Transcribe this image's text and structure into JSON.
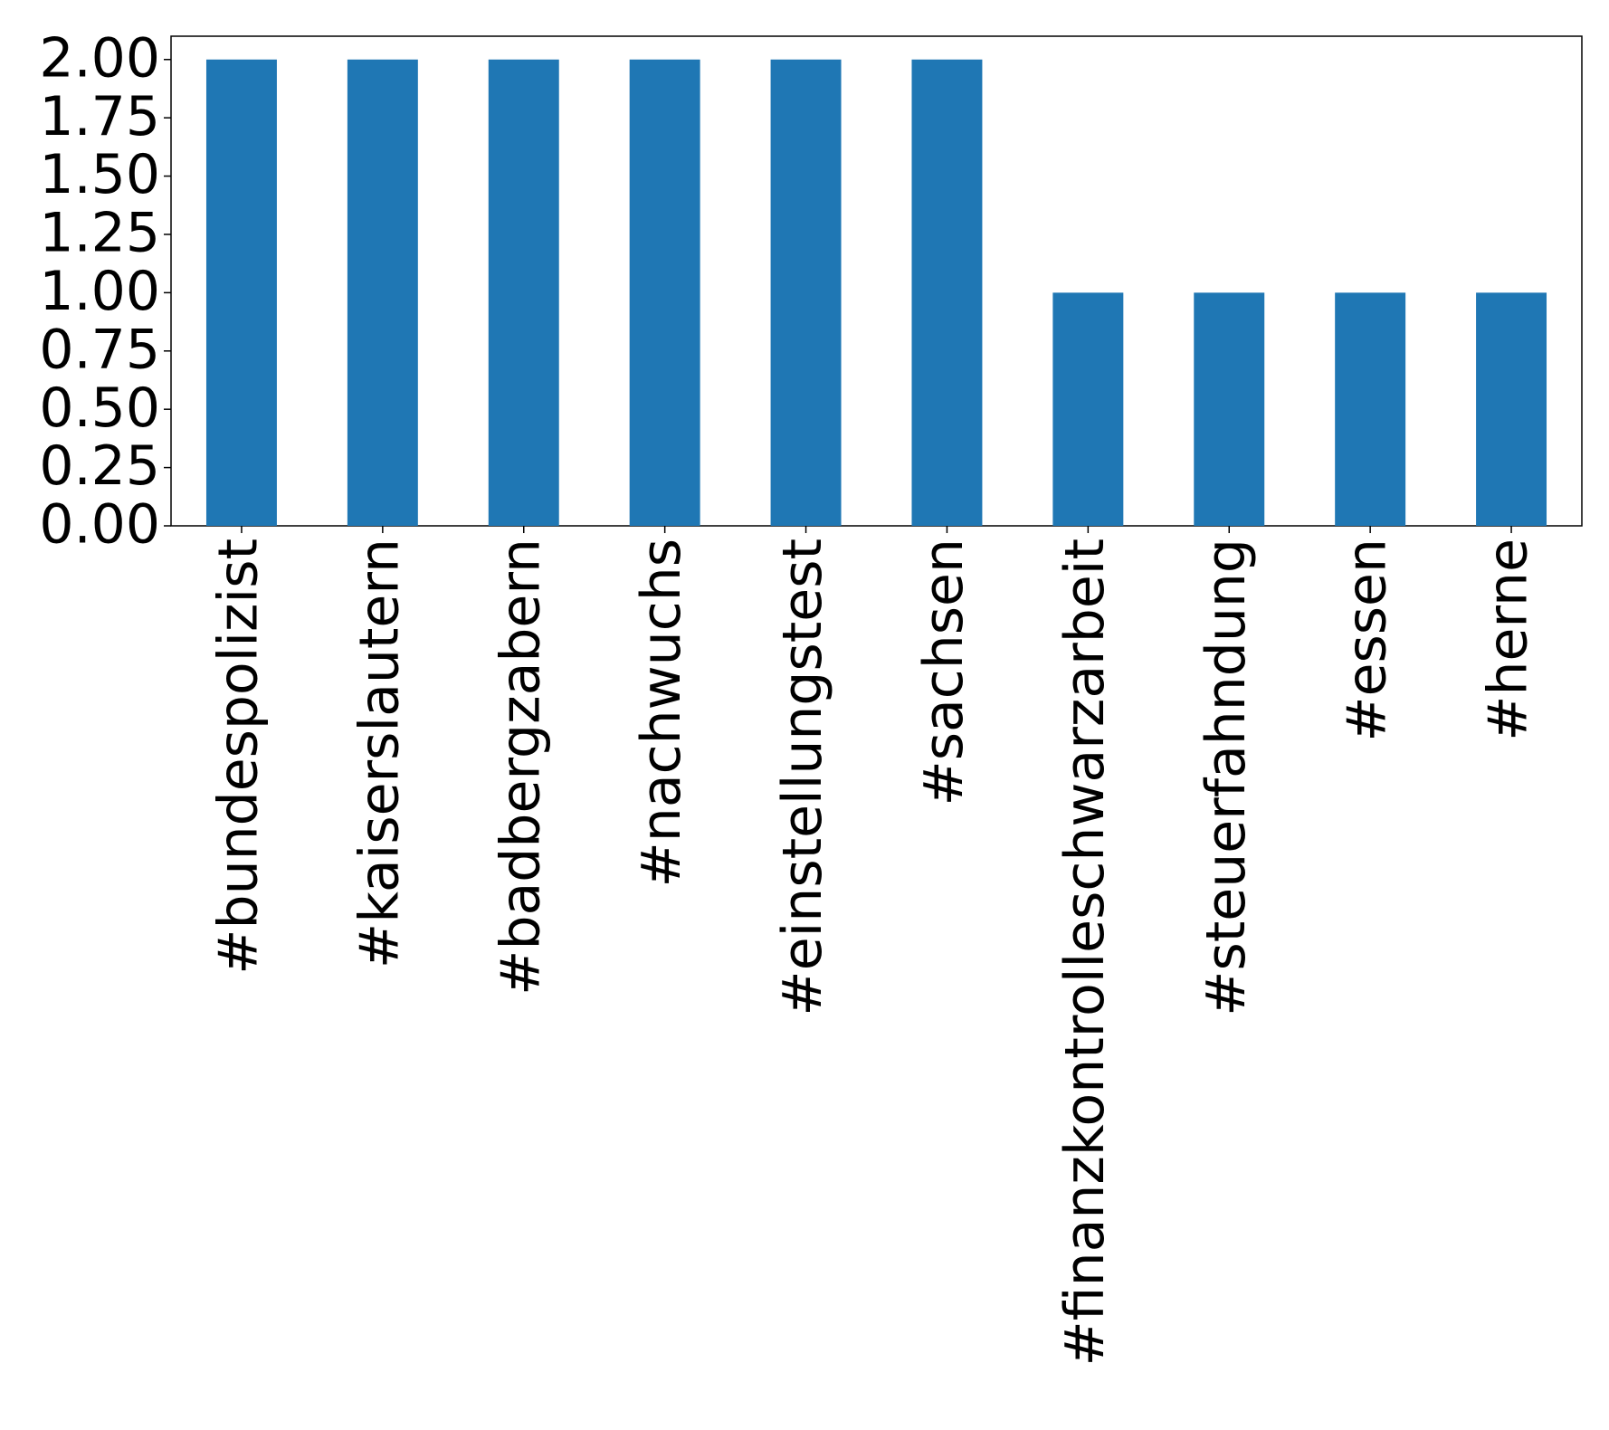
{
  "chart_data": {
    "type": "bar",
    "categories": [
      "#bundespolizist",
      "#kaiserslautern",
      "#badbergzabern",
      "#nachwuchs",
      "#einstellungstest",
      "#sachsen",
      "#finanzkontrolleschwarzarbeit",
      "#steuerfahndung",
      "#essen",
      "#herne"
    ],
    "values": [
      2,
      2,
      2,
      2,
      2,
      2,
      1,
      1,
      1,
      1
    ],
    "color": "#1f77b4",
    "ylim": [
      0,
      2.1
    ],
    "yticks": [
      {
        "value": 0,
        "label": "0.00"
      },
      {
        "value": 0.25,
        "label": "0.25"
      },
      {
        "value": 0.5,
        "label": "0.50"
      },
      {
        "value": 0.75,
        "label": "0.75"
      },
      {
        "value": 1,
        "label": "1.00"
      },
      {
        "value": 1.25,
        "label": "1.25"
      },
      {
        "value": 1.5,
        "label": "1.50"
      },
      {
        "value": 1.75,
        "label": "1.75"
      },
      {
        "value": 2,
        "label": "2.00"
      }
    ],
    "grid": false
  }
}
